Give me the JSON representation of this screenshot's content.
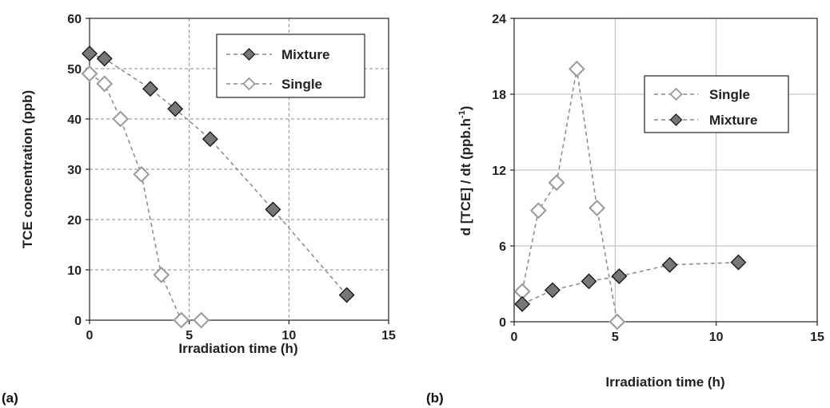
{
  "colors": {
    "mixture_fill": "#777777",
    "single_fill": "#ffffff",
    "single_stroke": "#999999",
    "mixture_stroke": "#111111",
    "line": "#8a8a8a",
    "grid_a": "#8a8a8a",
    "grid_b": "#bbbbbb"
  },
  "chart_data": [
    {
      "type": "line",
      "panel_label": "(a)",
      "xlabel": "Irradiation time (h)",
      "ylabel": "TCE concentration  (ppb)",
      "xlim": [
        0,
        15
      ],
      "ylim": [
        0,
        60
      ],
      "xticks": [
        0,
        5,
        10,
        15
      ],
      "yticks": [
        0,
        10,
        20,
        30,
        40,
        50,
        60
      ],
      "grid": true,
      "legend_position": "top-right",
      "series": [
        {
          "name": "Mixture",
          "marker": "filled-diamond",
          "x": [
            0,
            0.75,
            3.05,
            4.3,
            6.05,
            9.2,
            12.9
          ],
          "y": [
            53,
            52,
            46,
            42,
            36,
            22,
            5
          ]
        },
        {
          "name": "Single",
          "marker": "open-diamond",
          "x": [
            0,
            0.75,
            1.55,
            2.6,
            3.6,
            4.6,
            5.6
          ],
          "y": [
            49,
            47,
            40,
            29,
            9,
            0,
            0
          ]
        }
      ]
    },
    {
      "type": "line",
      "panel_label": "(b)",
      "xlabel": "Irradiation time (h)",
      "ylabel_main": "d [TCE] / dt  (ppb.h",
      "ylabel_sup": "-1",
      "ylabel_end": ")",
      "xlim": [
        0,
        15
      ],
      "ylim": [
        0,
        24
      ],
      "xticks": [
        0,
        5,
        10,
        15
      ],
      "yticks": [
        0,
        6,
        12,
        18,
        24
      ],
      "grid": true,
      "legend_position": "top-right",
      "series": [
        {
          "name": "Single",
          "marker": "open-diamond",
          "x": [
            0.4,
            1.2,
            2.1,
            3.1,
            4.1,
            5.1
          ],
          "y": [
            2.4,
            8.8,
            11,
            20,
            9,
            0
          ]
        },
        {
          "name": "Mixture",
          "marker": "filled-diamond",
          "x": [
            0.4,
            1.9,
            3.7,
            5.2,
            7.7,
            11.1
          ],
          "y": [
            1.4,
            2.5,
            3.2,
            3.6,
            4.5,
            4.7
          ]
        }
      ]
    }
  ]
}
